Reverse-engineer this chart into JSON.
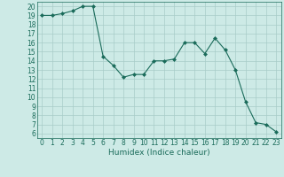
{
  "x": [
    0,
    1,
    2,
    3,
    4,
    5,
    6,
    7,
    8,
    9,
    10,
    11,
    12,
    13,
    14,
    15,
    16,
    17,
    18,
    19,
    20,
    21,
    22,
    23
  ],
  "y": [
    19.0,
    19.0,
    19.2,
    19.5,
    20.0,
    20.0,
    14.5,
    13.5,
    12.2,
    12.5,
    12.5,
    14.0,
    14.0,
    14.2,
    16.0,
    16.0,
    14.8,
    16.5,
    15.2,
    13.0,
    9.5,
    7.2,
    7.0,
    6.2
  ],
  "xlim": [
    -0.5,
    23.5
  ],
  "ylim": [
    5.5,
    20.5
  ],
  "yticks": [
    6,
    7,
    8,
    9,
    10,
    11,
    12,
    13,
    14,
    15,
    16,
    17,
    18,
    19,
    20
  ],
  "xticks": [
    0,
    1,
    2,
    3,
    4,
    5,
    6,
    7,
    8,
    9,
    10,
    11,
    12,
    13,
    14,
    15,
    16,
    17,
    18,
    19,
    20,
    21,
    22,
    23
  ],
  "xlabel": "Humidex (Indice chaleur)",
  "line_color": "#1a6b5a",
  "marker": "D",
  "marker_size": 2.0,
  "bg_color": "#cdeae6",
  "grid_color": "#a8ccc8",
  "tick_fontsize": 5.5,
  "xlabel_fontsize": 6.5
}
